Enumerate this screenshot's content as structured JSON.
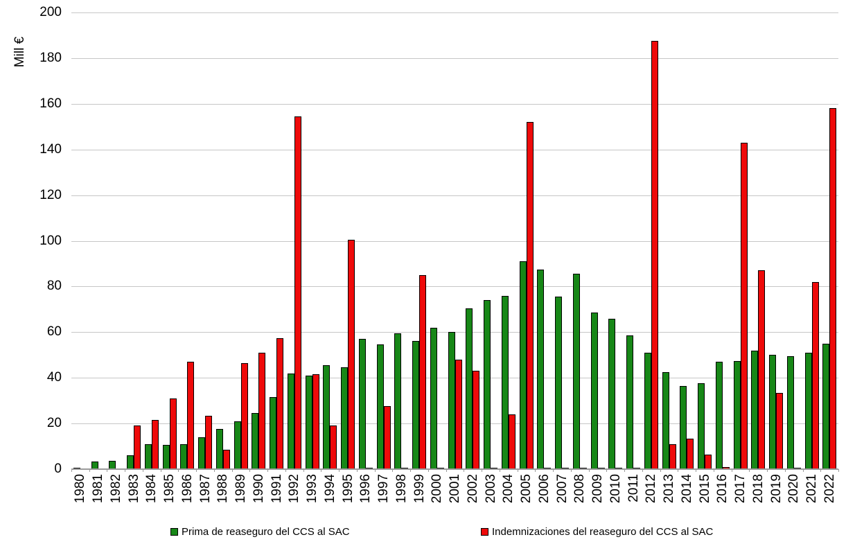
{
  "chart_data": {
    "type": "bar",
    "title": "",
    "ylabel": "Mill €",
    "xlabel": "",
    "ylim": [
      0,
      200
    ],
    "ytick_step": 20,
    "grid": "horizontal",
    "legend_position": "bottom",
    "categories": [
      "1980",
      "1981",
      "1982",
      "1983",
      "1984",
      "1985",
      "1986",
      "1987",
      "1988",
      "1989",
      "1990",
      "1991",
      "1992",
      "1993",
      "1994",
      "1995",
      "1996",
      "1997",
      "1998",
      "1999",
      "2000",
      "2001",
      "2002",
      "2003",
      "2004",
      "2005",
      "2006",
      "2007",
      "2008",
      "2009",
      "2010",
      "2011",
      "2012",
      "2013",
      "2014",
      "2015",
      "2016",
      "2017",
      "2018",
      "2019",
      "2020",
      "2021",
      "2022"
    ],
    "series": [
      {
        "name": "Prima de reaseguro del CCS al SAC",
        "color": "#178717",
        "values": [
          0.7,
          3.3,
          3.5,
          6,
          11,
          10.5,
          11,
          14,
          17.5,
          21,
          24.5,
          31.5,
          42,
          41,
          45.5,
          44.5,
          57,
          54.5,
          59.5,
          56,
          62,
          60,
          70.5,
          74,
          76,
          91,
          87.5,
          75.5,
          85.5,
          68.5,
          66,
          58.5,
          51,
          42.5,
          36.5,
          37.5,
          47,
          47.5,
          52,
          50,
          49.5,
          51,
          55
        ]
      },
      {
        "name": "Indemnizaciones del reaseguro del CCS al SAC",
        "color": "#ee0a0a",
        "values": [
          0,
          0,
          0,
          19,
          21.5,
          31,
          47,
          23.5,
          8.5,
          46.5,
          51,
          57.5,
          154.5,
          41.5,
          19,
          100.5,
          0.5,
          27.5,
          0.5,
          85,
          0.5,
          48,
          43,
          0.5,
          24,
          152,
          0.6,
          0.5,
          0.5,
          0.6,
          0.5,
          0.5,
          187.5,
          11,
          13.5,
          6.5,
          0.9,
          143,
          87,
          33.5,
          0.5,
          82,
          158
        ]
      }
    ]
  }
}
